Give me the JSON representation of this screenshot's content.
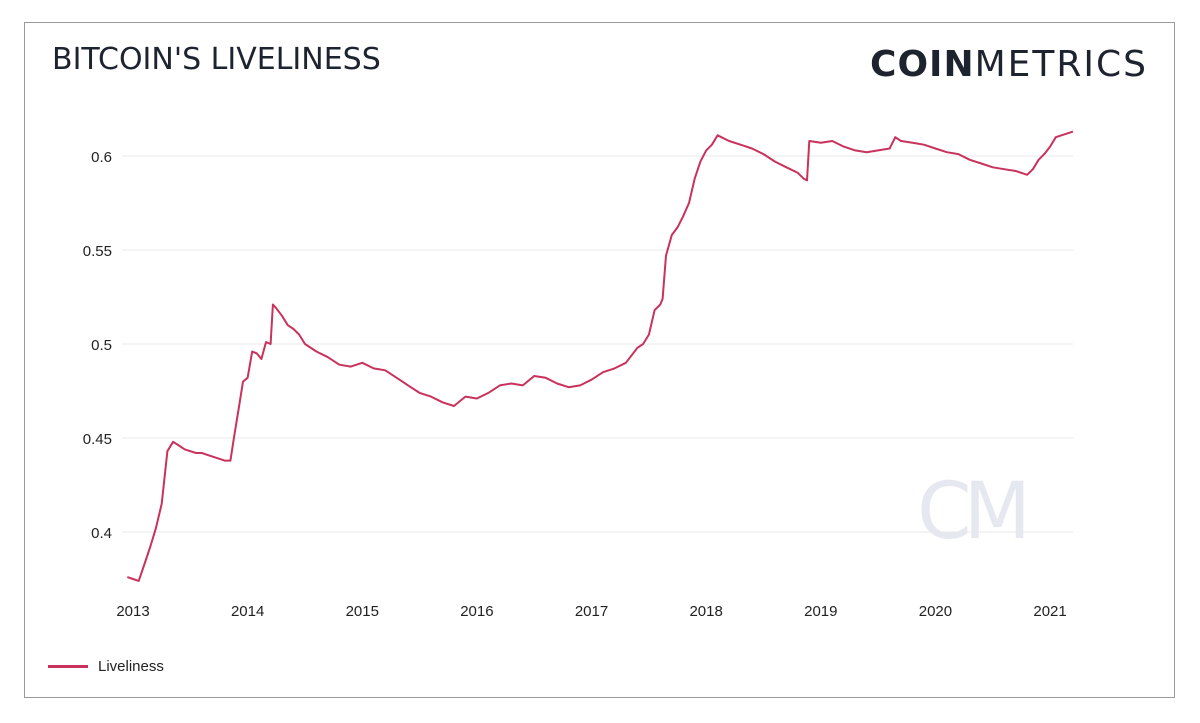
{
  "header": {
    "title": "BITCOIN'S LIVELINESS",
    "brand_bold": "COIN",
    "brand_light": "METRICS",
    "watermark": "CM"
  },
  "colors": {
    "line": "#c8325c",
    "grid": "#e8e8e8",
    "text": "#1e2330",
    "watermark": "#e6e8f0"
  },
  "chart_data": {
    "type": "line",
    "title": "BITCOIN'S LIVELINESS",
    "xlabel": "",
    "ylabel": "",
    "x_ticks": [
      "2013",
      "2014",
      "2015",
      "2016",
      "2017",
      "2018",
      "2019",
      "2020",
      "2021"
    ],
    "y_ticks": [
      "0.4",
      "0.45",
      "0.5",
      "0.55",
      "0.6"
    ],
    "xlim": [
      2013.0,
      2021.2
    ],
    "ylim": [
      0.37,
      0.62
    ],
    "grid": true,
    "legend_position": "bottom-left",
    "series": [
      {
        "name": "Liveliness",
        "x": [
          2012.95,
          2013.0,
          2013.05,
          2013.1,
          2013.15,
          2013.2,
          2013.25,
          2013.3,
          2013.35,
          2013.4,
          2013.45,
          2013.5,
          2013.55,
          2013.6,
          2013.65,
          2013.7,
          2013.75,
          2013.8,
          2013.85,
          2013.88,
          2013.92,
          2013.96,
          2014.0,
          2014.04,
          2014.08,
          2014.12,
          2014.16,
          2014.2,
          2014.22,
          2014.25,
          2014.3,
          2014.35,
          2014.4,
          2014.45,
          2014.5,
          2014.6,
          2014.7,
          2014.8,
          2014.9,
          2015.0,
          2015.1,
          2015.2,
          2015.3,
          2015.4,
          2015.5,
          2015.6,
          2015.7,
          2015.8,
          2015.9,
          2016.0,
          2016.1,
          2016.2,
          2016.3,
          2016.4,
          2016.5,
          2016.6,
          2016.7,
          2016.8,
          2016.9,
          2017.0,
          2017.1,
          2017.2,
          2017.3,
          2017.4,
          2017.45,
          2017.5,
          2017.55,
          2017.6,
          2017.62,
          2017.65,
          2017.7,
          2017.75,
          2017.8,
          2017.85,
          2017.9,
          2017.95,
          2018.0,
          2018.05,
          2018.1,
          2018.2,
          2018.3,
          2018.4,
          2018.5,
          2018.6,
          2018.7,
          2018.8,
          2018.85,
          2018.88,
          2018.9,
          2019.0,
          2019.1,
          2019.2,
          2019.3,
          2019.4,
          2019.5,
          2019.6,
          2019.65,
          2019.7,
          2019.8,
          2019.9,
          2020.0,
          2020.1,
          2020.2,
          2020.3,
          2020.4,
          2020.5,
          2020.6,
          2020.7,
          2020.8,
          2020.85,
          2020.9,
          2020.95,
          2021.0,
          2021.05,
          2021.1,
          2021.15,
          2021.2
        ],
        "y": [
          0.376,
          0.375,
          0.374,
          0.383,
          0.392,
          0.402,
          0.415,
          0.443,
          0.448,
          0.446,
          0.444,
          0.443,
          0.442,
          0.442,
          0.441,
          0.44,
          0.439,
          0.438,
          0.438,
          0.45,
          0.465,
          0.48,
          0.482,
          0.496,
          0.495,
          0.492,
          0.501,
          0.5,
          0.521,
          0.519,
          0.515,
          0.51,
          0.508,
          0.505,
          0.5,
          0.496,
          0.493,
          0.489,
          0.488,
          0.49,
          0.487,
          0.486,
          0.482,
          0.478,
          0.474,
          0.472,
          0.469,
          0.467,
          0.472,
          0.471,
          0.474,
          0.478,
          0.479,
          0.478,
          0.483,
          0.482,
          0.479,
          0.477,
          0.478,
          0.481,
          0.485,
          0.487,
          0.49,
          0.498,
          0.5,
          0.505,
          0.518,
          0.521,
          0.524,
          0.547,
          0.558,
          0.562,
          0.568,
          0.575,
          0.588,
          0.597,
          0.603,
          0.606,
          0.611,
          0.608,
          0.606,
          0.604,
          0.601,
          0.597,
          0.594,
          0.591,
          0.588,
          0.587,
          0.608,
          0.607,
          0.608,
          0.605,
          0.603,
          0.602,
          0.603,
          0.604,
          0.61,
          0.608,
          0.607,
          0.606,
          0.604,
          0.602,
          0.601,
          0.598,
          0.596,
          0.594,
          0.593,
          0.592,
          0.59,
          0.593,
          0.598,
          0.601,
          0.605,
          0.61,
          0.611,
          0.612,
          0.613
        ]
      }
    ]
  }
}
